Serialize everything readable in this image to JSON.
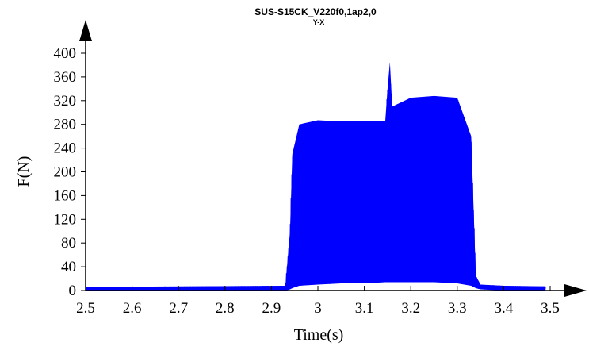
{
  "chart_data": {
    "type": "area",
    "title": "SUS-S15CK_V220f0,1ap2,0",
    "subtitle": "Y-X",
    "xlabel": "Time(s)",
    "ylabel": "F(N)",
    "xlim": [
      2.5,
      3.5
    ],
    "ylim": [
      0,
      400
    ],
    "xticks": [
      "2.5",
      "2.6",
      "2.7",
      "2.8",
      "2.9",
      "3",
      "3.1",
      "3.2",
      "3.3",
      "3.4",
      "3.5"
    ],
    "yticks": [
      "0",
      "40",
      "80",
      "120",
      "160",
      "200",
      "240",
      "280",
      "320",
      "360",
      "400"
    ],
    "grid": false,
    "series": [
      {
        "color": "#0000ff",
        "envelope_x": [
          2.5,
          2.93,
          2.94,
          2.945,
          2.96,
          3.0,
          3.05,
          3.1,
          3.145,
          3.15,
          3.155,
          3.16,
          3.2,
          3.25,
          3.3,
          3.33,
          3.34,
          3.35,
          3.4,
          3.49
        ],
        "envelope_max": [
          6,
          8,
          100,
          230,
          280,
          287,
          285,
          285,
          285,
          340,
          385,
          310,
          325,
          328,
          325,
          260,
          25,
          10,
          8,
          7
        ],
        "envelope_min": [
          0,
          0,
          2,
          4,
          8,
          10,
          12,
          12,
          14,
          14,
          14,
          14,
          14,
          14,
          12,
          8,
          4,
          2,
          0,
          0
        ]
      }
    ]
  }
}
